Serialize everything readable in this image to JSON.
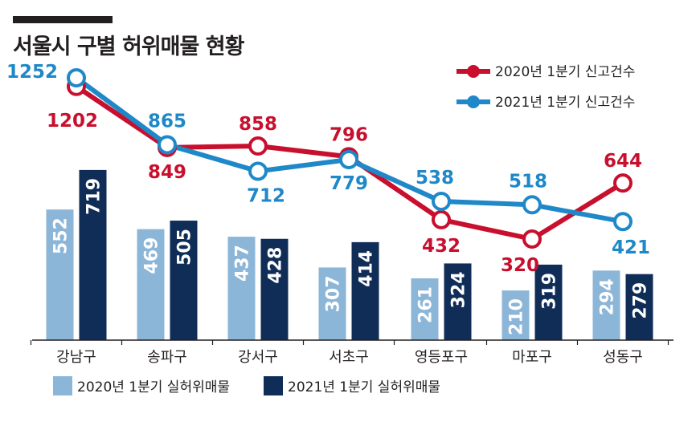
{
  "title": "서울시 구별 허위매물 현황",
  "colors": {
    "bar2020": "#8cb6d8",
    "bar2021": "#0f2d57",
    "line2020": "#c8102e",
    "line2021": "#1f88c8",
    "text": "#231f20"
  },
  "chart_data": {
    "type": "bar",
    "categories": [
      "강남구",
      "송파구",
      "강서구",
      "서초구",
      "영등포구",
      "마포구",
      "성동구"
    ],
    "bar_series": [
      {
        "name": "2020년 1분기 실허위매물",
        "values": [
          552,
          469,
          437,
          307,
          261,
          210,
          294
        ]
      },
      {
        "name": "2021년 1분기 실허위매물",
        "values": [
          719,
          505,
          428,
          414,
          324,
          319,
          279
        ]
      }
    ],
    "line_series": [
      {
        "name": "2020년 1분기 신고건수",
        "values": [
          1202,
          849,
          858,
          796,
          432,
          320,
          644
        ]
      },
      {
        "name": "2021년 1분기 신고건수",
        "values": [
          1252,
          865,
          712,
          779,
          538,
          518,
          421
        ]
      }
    ],
    "bar_ylim": [
      0,
      780
    ],
    "line_ylim": [
      0,
      1750
    ],
    "legend_position": "top-right (lines), bottom-left (bars)"
  }
}
